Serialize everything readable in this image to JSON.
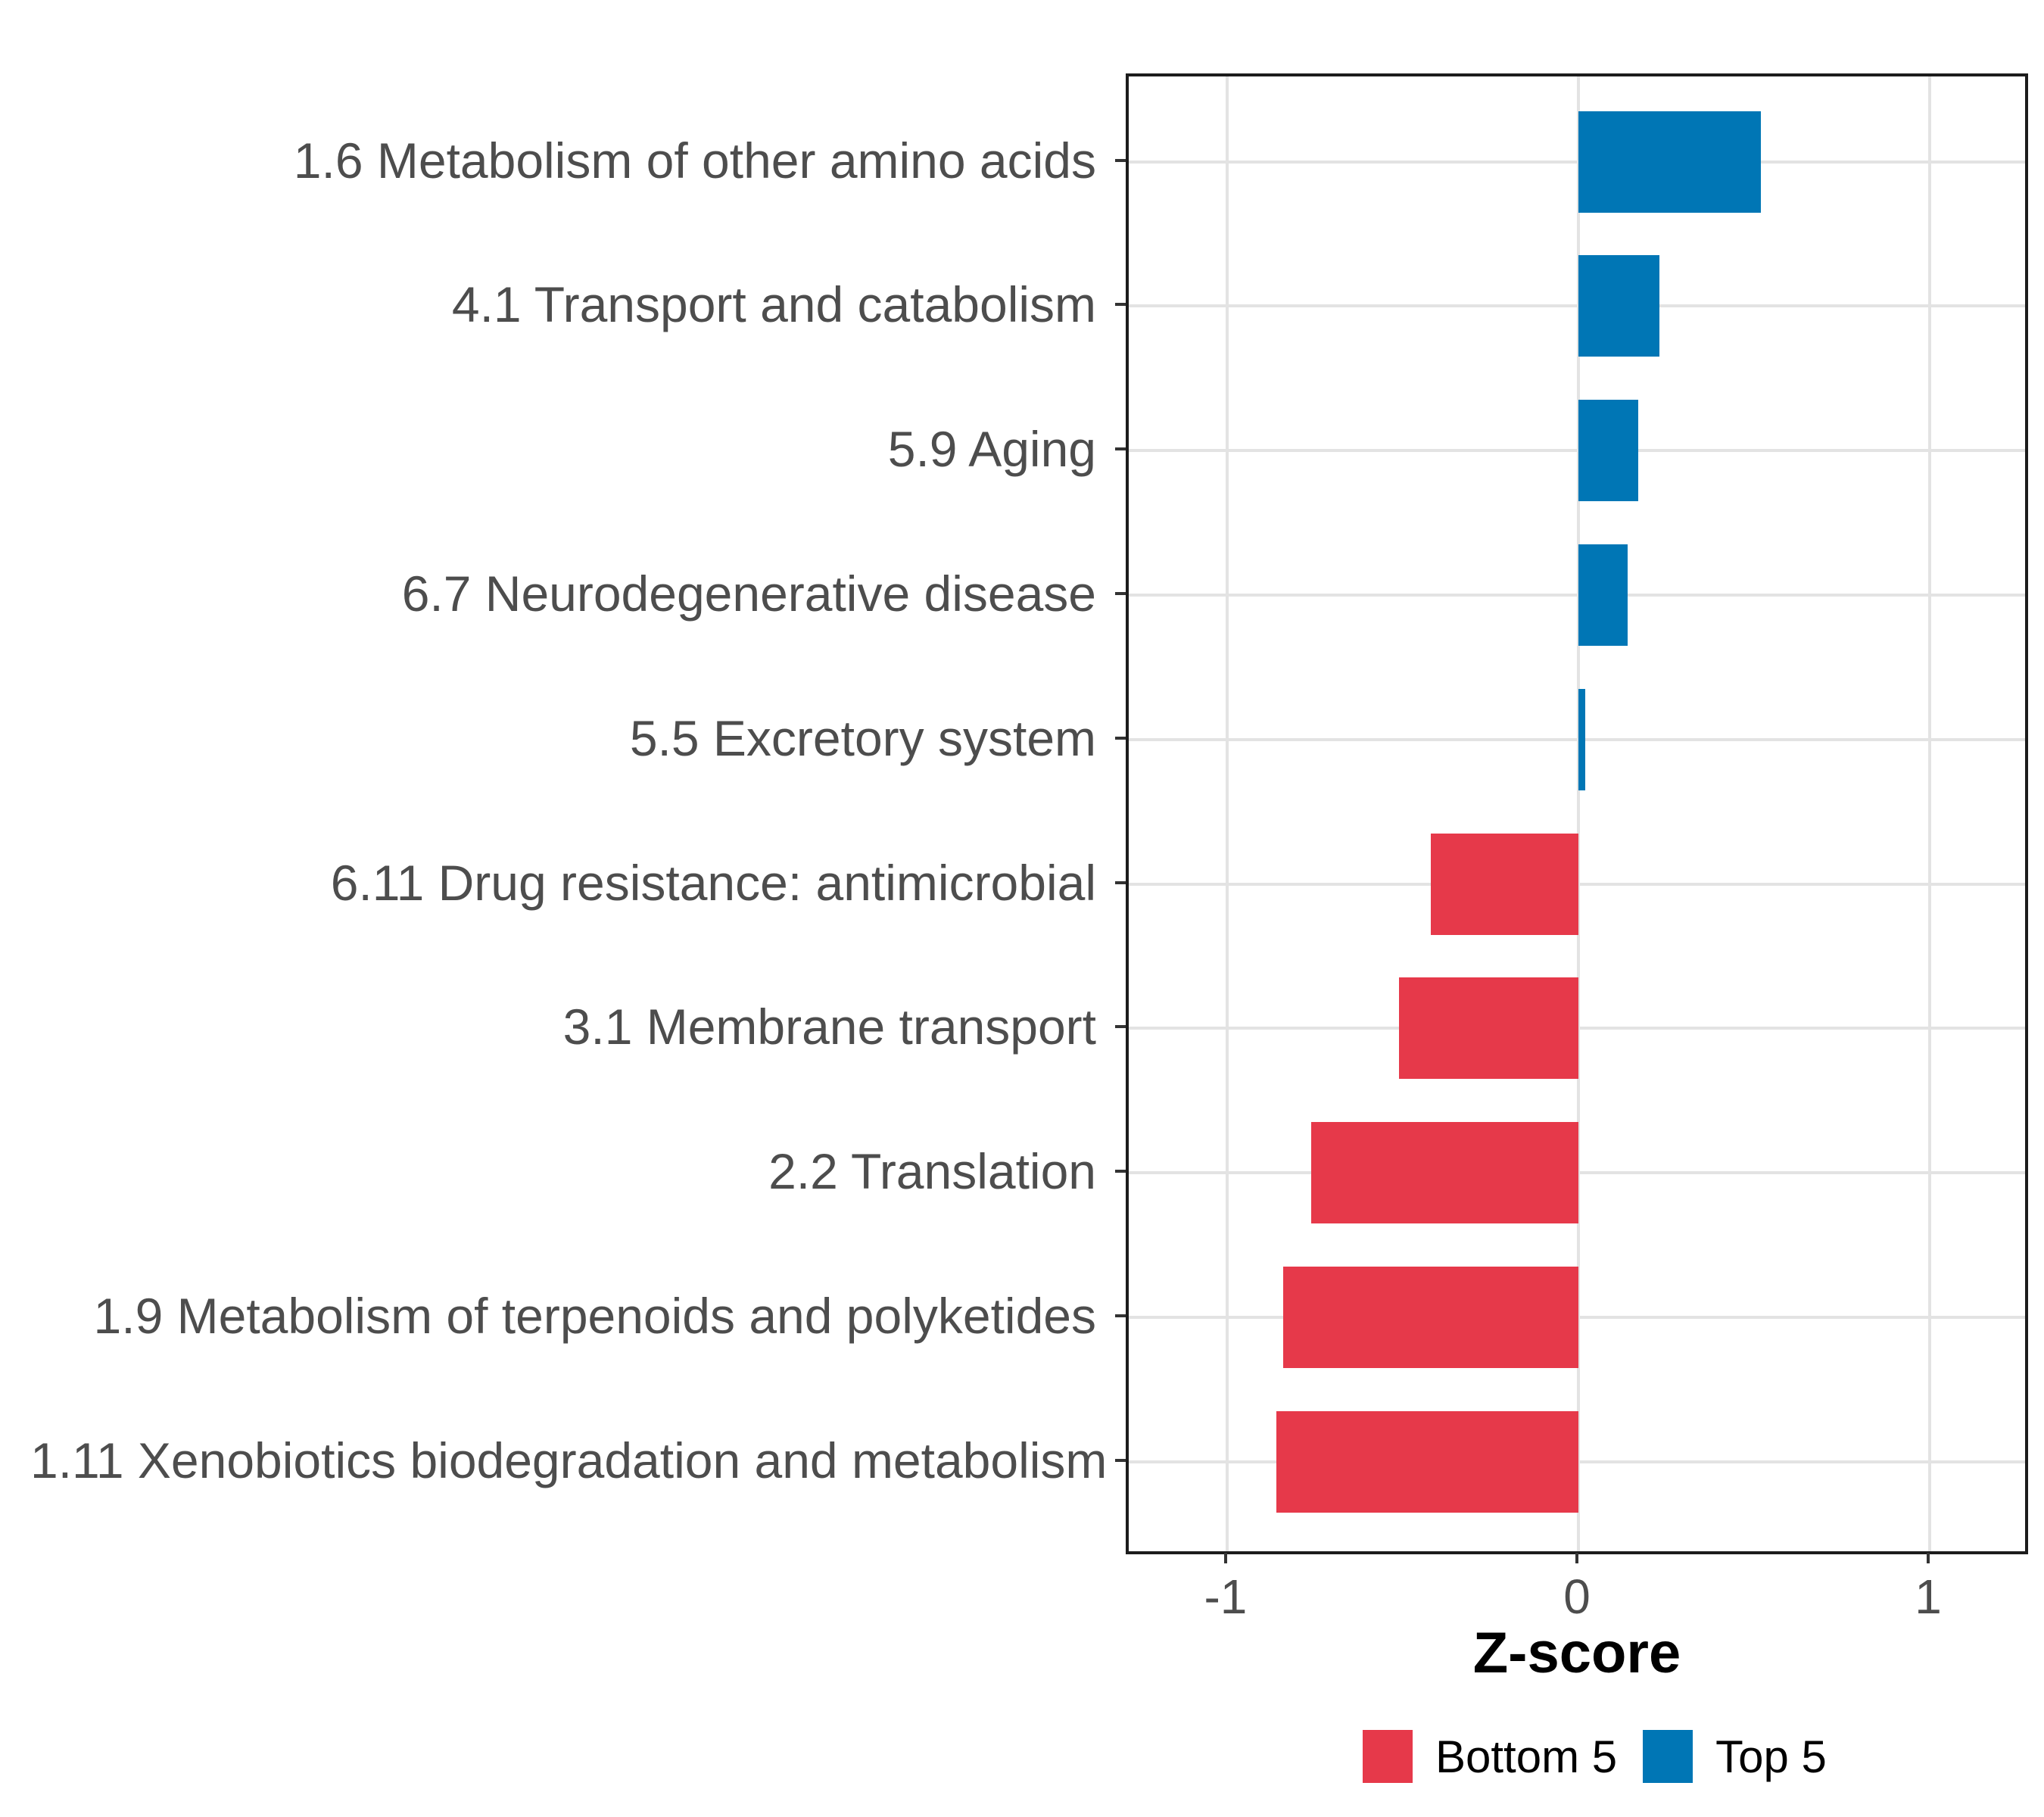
{
  "chart_data": {
    "type": "bar",
    "orientation": "horizontal",
    "title": "",
    "xlabel": "Z-score",
    "ylabel": "",
    "categories": [
      "1.6 Metabolism of other amino acids",
      "4.1 Transport and catabolism",
      "5.9 Aging",
      "6.7 Neurodegenerative disease",
      "5.5 Excretory system",
      "6.11 Drug resistance: antimicrobial",
      "3.1 Membrane transport",
      "2.2 Translation",
      "1.9 Metabolism of terpenoids and polyketides",
      "1.11 Xenobiotics biodegradation and metabolism"
    ],
    "values": [
      0.52,
      0.23,
      0.17,
      0.14,
      0.02,
      -0.42,
      -0.51,
      -0.76,
      -0.84,
      -0.86
    ],
    "groups": [
      "Top 5",
      "Top 5",
      "Top 5",
      "Top 5",
      "Top 5",
      "Bottom 5",
      "Bottom 5",
      "Bottom 5",
      "Bottom 5",
      "Bottom 5"
    ],
    "x_ticks": [
      "-1",
      "0",
      "1"
    ],
    "x_tick_values": [
      -1,
      0,
      1
    ],
    "xlim": [
      -1.28,
      1.28
    ],
    "grid": "major-only",
    "colors": {
      "Bottom 5": "#e6394a",
      "Top 5": "#0076b5",
      "gridline": "#e3e3e3",
      "axis_text": "#4d4d4d",
      "panel_border": "#1c1c1c"
    },
    "legend": {
      "position": "bottom",
      "entries": [
        {
          "label": "Bottom 5",
          "color": "#e6394a"
        },
        {
          "label": "Top 5",
          "color": "#0076b5"
        }
      ]
    }
  }
}
